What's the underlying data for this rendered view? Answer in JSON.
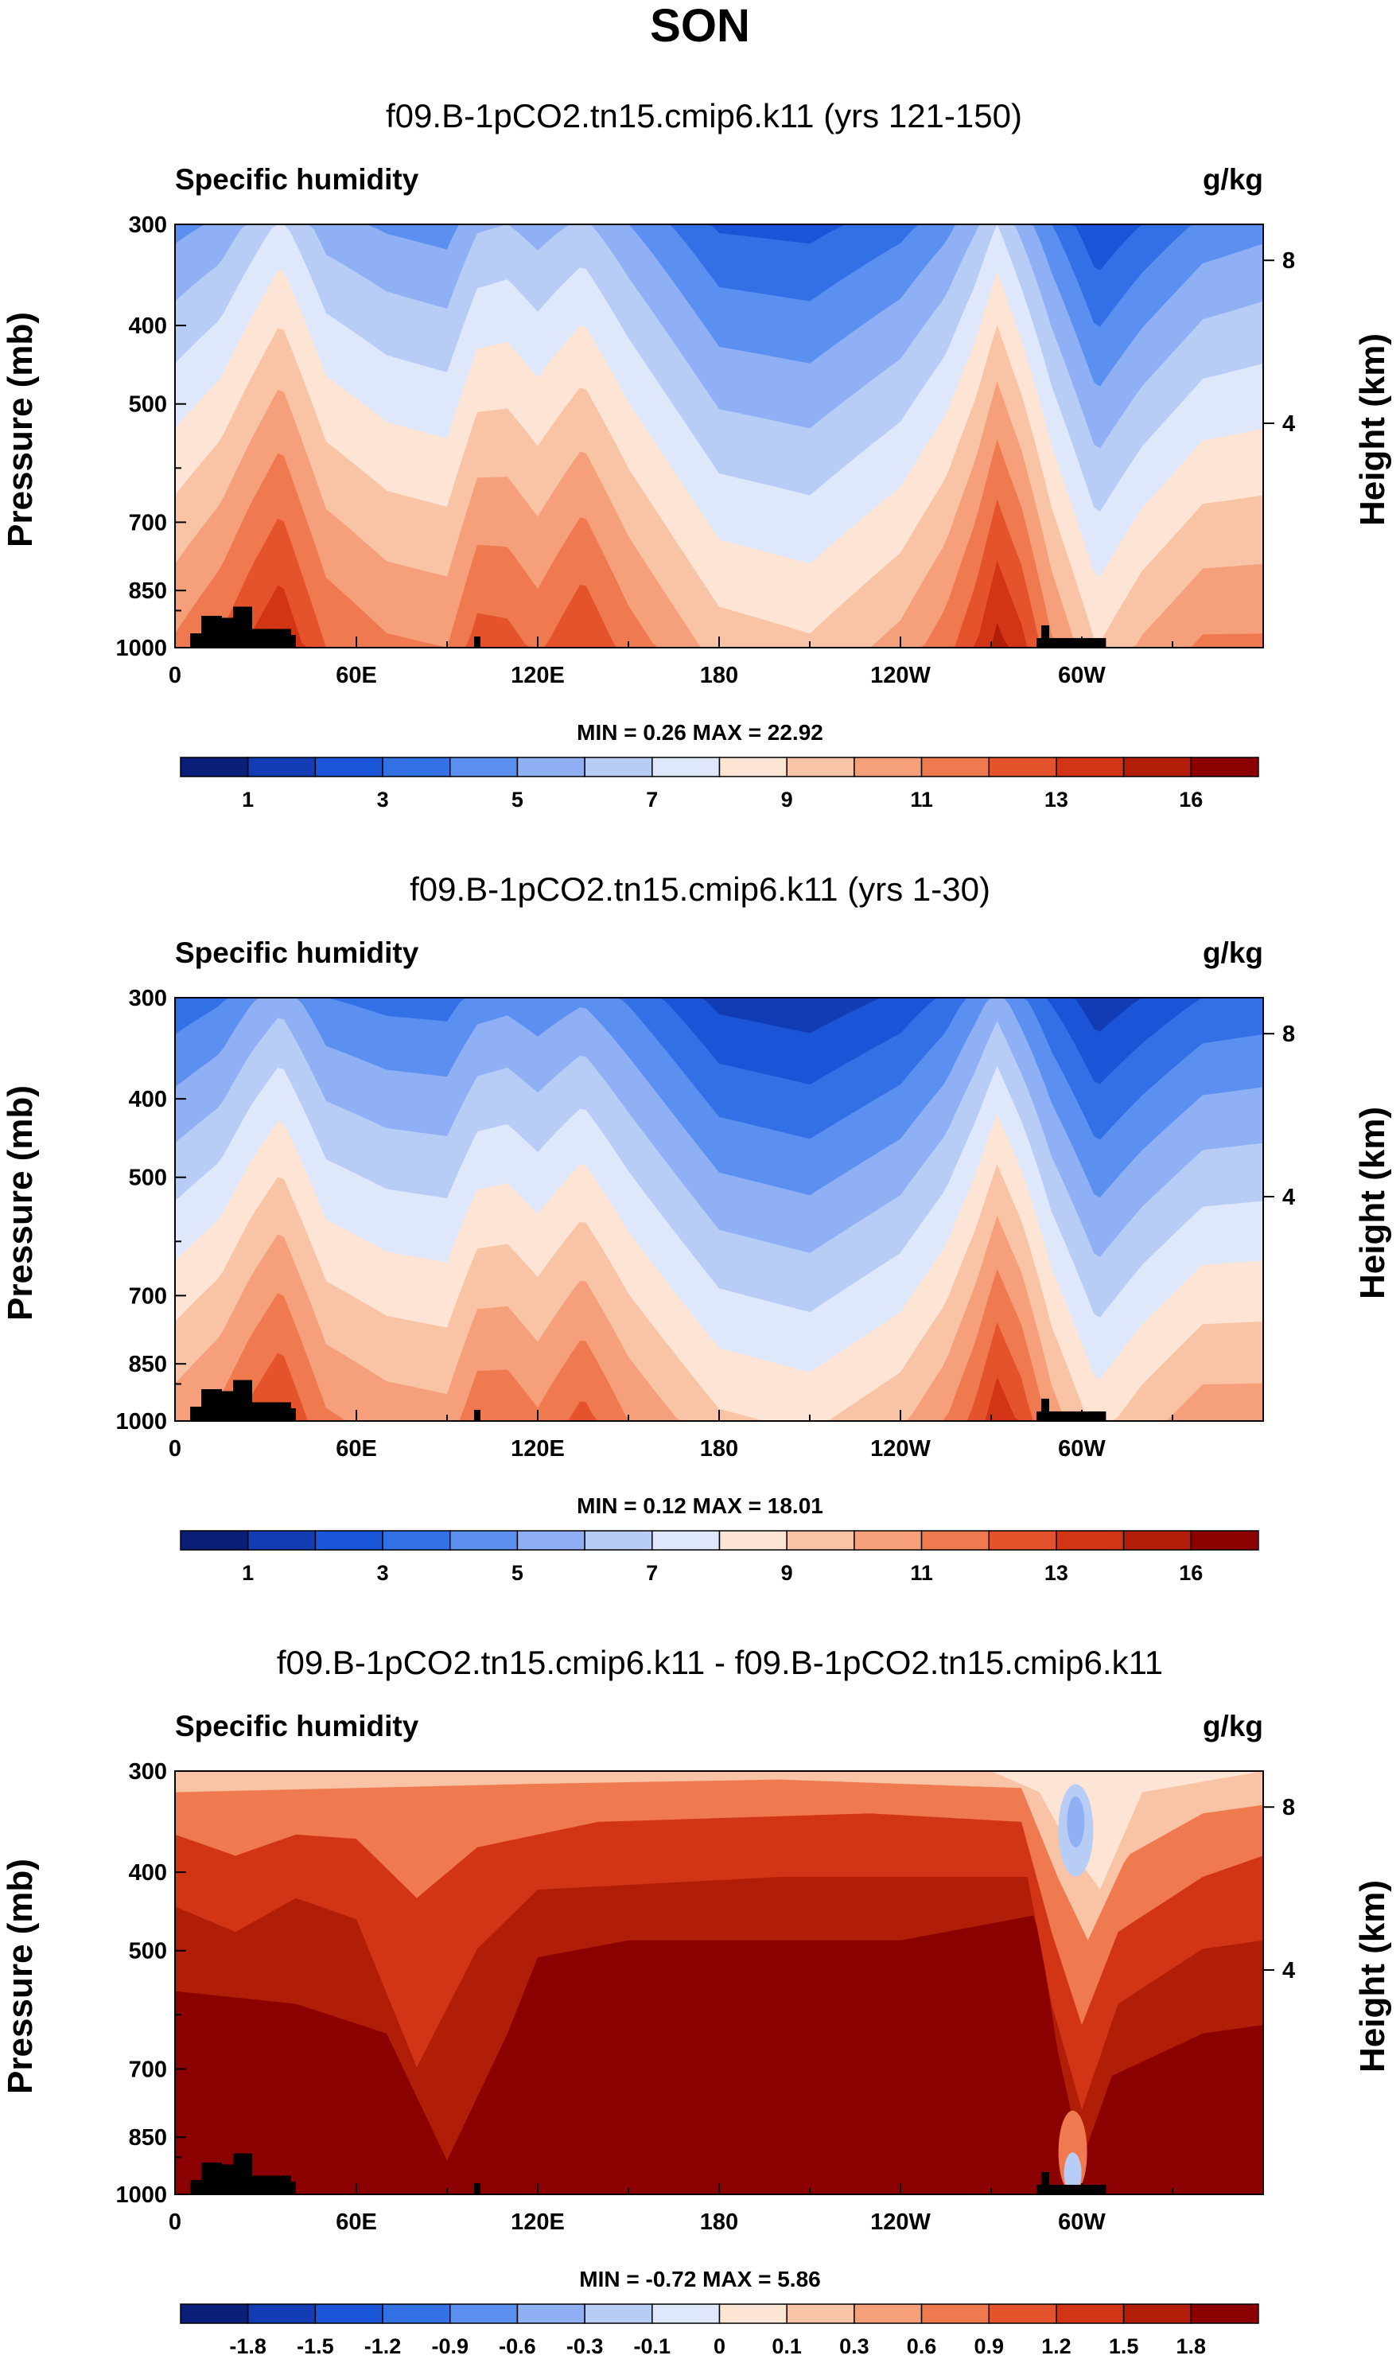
{
  "title": "SON",
  "chart_data": [
    {
      "type": "heatmap",
      "title": "f09.B-1pCO2.tn15.cmip6.k11 (yrs 121-150)",
      "left_label": "Specific humidity",
      "right_label": "g/kg",
      "ylabel": "Pressure (mb)",
      "ylabel_right": "Height (km)",
      "yticks": [
        "300",
        "400",
        "500",
        "700",
        "850",
        "1000"
      ],
      "yticks_right": [
        "8",
        "4"
      ],
      "xticks": [
        "0",
        "60E",
        "120E",
        "180",
        "120W",
        "60W"
      ],
      "stats": "MIN =   0.26  MAX =  22.92",
      "colorbar": {
        "colors": [
          "#0a1e78",
          "#123cb4",
          "#1a55d8",
          "#3270e6",
          "#5b8ff0",
          "#8fb0f4",
          "#b8cdf6",
          "#dfe8fb",
          "#fde4d4",
          "#f9c4a6",
          "#f5a07a",
          "#f07a50",
          "#e5532d",
          "#d23516",
          "#b01e08",
          "#8b0000"
        ],
        "labels": [
          "1",
          "3",
          "5",
          "7",
          "9",
          "11",
          "13",
          "16"
        ]
      },
      "field": {
        "palette_min": 0,
        "palette_max": 16,
        "x_deg": [
          0,
          15,
          25,
          35,
          50,
          70,
          90,
          100,
          110,
          120,
          135,
          150,
          180,
          210,
          240,
          255,
          265,
          272,
          280,
          290,
          305,
          320,
          340,
          360
        ],
        "ridge_upper": [
          4.6,
          5.2,
          6.2,
          7.2,
          5.4,
          4.8,
          4.5,
          5.8,
          6.0,
          5.5,
          6.2,
          5.0,
          2.8,
          2.6,
          3.6,
          4.6,
          5.8,
          7.0,
          5.6,
          4.0,
          2.0,
          3.0,
          4.2,
          4.6
        ],
        "ridge_lower": [
          11.2,
          12.2,
          13.2,
          14.0,
          12.0,
          11.2,
          11.0,
          12.5,
          12.4,
          11.8,
          13.0,
          11.6,
          9.6,
          9.2,
          10.4,
          11.6,
          13.0,
          14.4,
          13.4,
          11.2,
          9.0,
          10.2,
          11.2,
          11.2
        ]
      }
    },
    {
      "type": "heatmap",
      "title": "f09.B-1pCO2.tn15.cmip6.k11 (yrs 1-30)",
      "left_label": "Specific humidity",
      "right_label": "g/kg",
      "ylabel": "Pressure (mb)",
      "ylabel_right": "Height (km)",
      "yticks": [
        "300",
        "400",
        "500",
        "700",
        "850",
        "1000"
      ],
      "yticks_right": [
        "8",
        "4"
      ],
      "xticks": [
        "0",
        "60E",
        "120E",
        "180",
        "120W",
        "60W"
      ],
      "stats": "MIN =   0.12  MAX =  18.01",
      "colorbar": {
        "colors": [
          "#0a1e78",
          "#123cb4",
          "#1a55d8",
          "#3270e6",
          "#5b8ff0",
          "#8fb0f4",
          "#b8cdf6",
          "#dfe8fb",
          "#fde4d4",
          "#f9c4a6",
          "#f5a07a",
          "#f07a50",
          "#e5532d",
          "#d23516",
          "#b01e08",
          "#8b0000"
        ],
        "labels": [
          "1",
          "3",
          "5",
          "7",
          "9",
          "11",
          "13",
          "16"
        ]
      },
      "field": {
        "palette_min": 0,
        "palette_max": 16,
        "x_deg": [
          0,
          15,
          25,
          35,
          50,
          70,
          90,
          100,
          110,
          120,
          135,
          150,
          180,
          210,
          240,
          255,
          265,
          272,
          280,
          290,
          305,
          320,
          340,
          360
        ],
        "ridge_upper": [
          3.2,
          3.8,
          4.8,
          5.6,
          4.0,
          3.6,
          3.5,
          4.4,
          4.6,
          4.2,
          4.8,
          3.8,
          1.6,
          1.2,
          2.2,
          3.2,
          4.4,
          5.4,
          4.2,
          2.8,
          1.2,
          2.0,
          3.0,
          3.2
        ],
        "ridge_lower": [
          10.6,
          11.4,
          12.4,
          13.2,
          11.2,
          10.6,
          10.4,
          11.8,
          11.8,
          11.2,
          12.4,
          11.0,
          9.2,
          8.8,
          9.8,
          11.0,
          12.4,
          13.8,
          12.8,
          10.6,
          8.6,
          9.6,
          10.6,
          10.6
        ]
      }
    },
    {
      "type": "heatmap",
      "title": "f09.B-1pCO2.tn15.cmip6.k11 - f09.B-1pCO2.tn15.cmip6.k11",
      "left_label": "Specific humidity",
      "right_label": "g/kg",
      "ylabel": "Pressure (mb)",
      "ylabel_right": "Height (km)",
      "yticks": [
        "300",
        "400",
        "500",
        "700",
        "850",
        "1000"
      ],
      "yticks_right": [
        "8",
        "4"
      ],
      "xticks": [
        "0",
        "60E",
        "120E",
        "180",
        "120W",
        "60W"
      ],
      "stats": "MIN =  -0.72  MAX =   5.86",
      "colorbar": {
        "colors": [
          "#0a1e78",
          "#123cb4",
          "#1a55d8",
          "#3270e6",
          "#5b8ff0",
          "#8fb0f4",
          "#b8cdf6",
          "#dfe8fb",
          "#fde4d4",
          "#f9c4a6",
          "#f5a07a",
          "#f07a50",
          "#e5532d",
          "#d23516",
          "#b01e08",
          "#8b0000"
        ],
        "labels": [
          "-1.8",
          "-1.5",
          "-1.2",
          "-0.9",
          "-0.6",
          "-0.3",
          "-0.1",
          "0",
          "0.1",
          "0.3",
          "0.6",
          "0.9",
          "1.2",
          "1.5",
          "1.8"
        ]
      },
      "field": {
        "levels": [
          -1.8,
          -1.5,
          -1.2,
          -0.9,
          -0.6,
          -0.3,
          -0.1,
          0,
          0.1,
          0.3,
          0.6,
          0.9,
          1.2,
          1.5,
          1.8
        ]
      }
    }
  ],
  "topography": {
    "africa_lon": [
      5,
      40
    ],
    "africa_top_mb": 890,
    "andes_lon": [
      285,
      308
    ],
    "andes_top_mb": 960
  }
}
